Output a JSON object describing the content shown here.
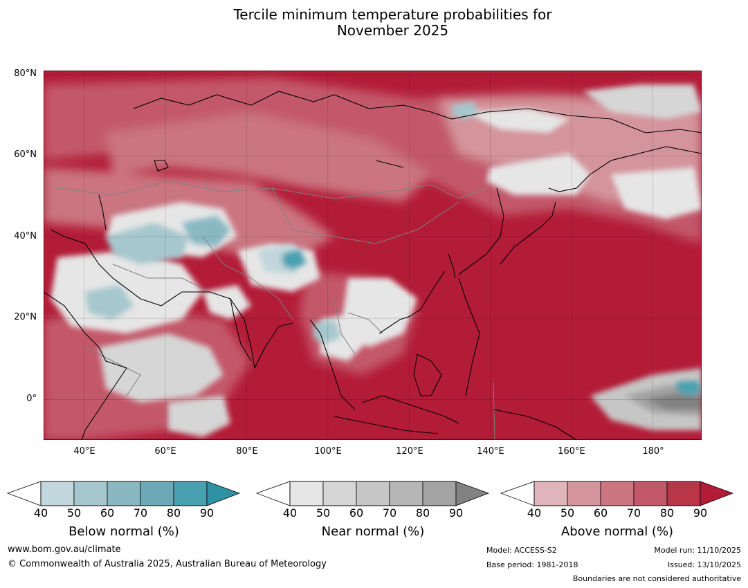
{
  "title": {
    "line1": "Tercile minimum temperature probabilities for",
    "line2": "November 2025"
  },
  "map": {
    "lat_labels": [
      "80°N",
      "60°N",
      "40°N",
      "20°N",
      "0°"
    ],
    "lon_labels": [
      "40°E",
      "60°E",
      "80°E",
      "100°E",
      "120°E",
      "140°E",
      "160°E",
      "180°"
    ],
    "extent": {
      "lon_min": 30,
      "lon_max": 192,
      "lat_min": -10,
      "lat_max": 81
    },
    "ocean_color": "#b31c37",
    "coast_color": "#000000",
    "border_color": "#808080"
  },
  "colorbars": [
    {
      "label": "Below normal (%)",
      "ticks": [
        "40",
        "50",
        "60",
        "70",
        "80",
        "90"
      ],
      "colors": [
        "#c1d6dd",
        "#a6c7cd",
        "#89b8c3",
        "#6ba9b6",
        "#49a0b0",
        "#2f91a4"
      ]
    },
    {
      "label": "Near normal (%)",
      "ticks": [
        "40",
        "50",
        "60",
        "70",
        "80",
        "90"
      ],
      "colors": [
        "#e6e6e6",
        "#d6d6d6",
        "#c6c6c6",
        "#b6b6b6",
        "#a3a3a3",
        "#828282"
      ]
    },
    {
      "label": "Above normal (%)",
      "ticks": [
        "40",
        "50",
        "60",
        "70",
        "80",
        "90"
      ],
      "colors": [
        "#dfb5bb",
        "#d4949c",
        "#ca7580",
        "#c3586a",
        "#b93548",
        "#b31c37"
      ]
    }
  ],
  "footer": {
    "url": "www.bom.gov.au/climate",
    "copyright": "© Commonwealth of Australia 2025, Australian Bureau of Meteorology",
    "model": "Model: ACCESS-S2",
    "base_period": "Base period: 1981-2018",
    "model_run": "Model run: 11/10/2025",
    "issued": "Issued: 13/10/2025",
    "disclaimer": "Boundaries are not considered authoritative"
  }
}
